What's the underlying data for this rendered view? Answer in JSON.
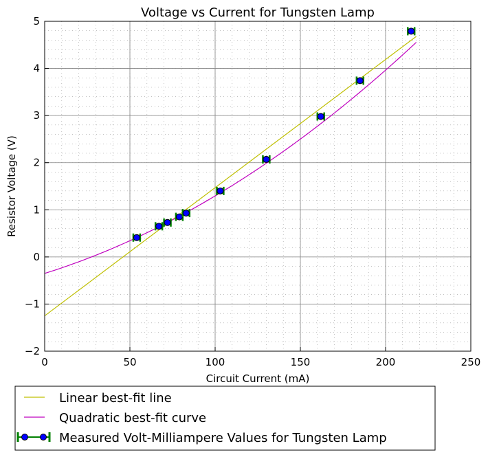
{
  "chart_data": {
    "type": "scatter",
    "title": "Voltage vs Current for Tungsten Lamp",
    "xlabel": "Circuit Current (mA)",
    "ylabel": "Resistor Voltage (V)",
    "xlim": [
      0,
      250
    ],
    "ylim": [
      -2,
      5
    ],
    "x_ticks": [
      0,
      50,
      100,
      150,
      200,
      250
    ],
    "y_ticks": [
      -2,
      -1,
      0,
      1,
      2,
      3,
      4,
      5
    ],
    "x_tick_labels": [
      "0",
      "50",
      "100",
      "150",
      "200",
      "250"
    ],
    "y_tick_labels": [
      "−2",
      "−1",
      "0",
      "1",
      "2",
      "3",
      "4",
      "5"
    ],
    "grid": true,
    "minor_grid": true,
    "legend_position": "below-left",
    "series": [
      {
        "name": "Linear best-fit line",
        "kind": "line",
        "color": "#bfbf00",
        "x_range": [
          0,
          218
        ],
        "slope": 0.0272,
        "intercept": -1.25
      },
      {
        "name": "Quadratic best-fit curve",
        "kind": "curve",
        "color": "#bf00bf",
        "x_range": [
          0,
          218
        ],
        "coefficients": [
          -0.35,
          0.01131,
          5.13e-05
        ]
      },
      {
        "name": "Measured Volt-Milliampere Values for Tungsten Lamp",
        "kind": "points",
        "marker_color": "#0000ff",
        "errorbar_color": "#008000",
        "x": [
          54,
          67,
          72,
          79,
          83,
          103,
          130,
          162,
          185,
          215
        ],
        "y": [
          0.41,
          0.65,
          0.73,
          0.85,
          0.93,
          1.4,
          2.07,
          2.98,
          3.74,
          4.79
        ],
        "x_err": 2.0,
        "y_err": 0.04
      }
    ]
  }
}
